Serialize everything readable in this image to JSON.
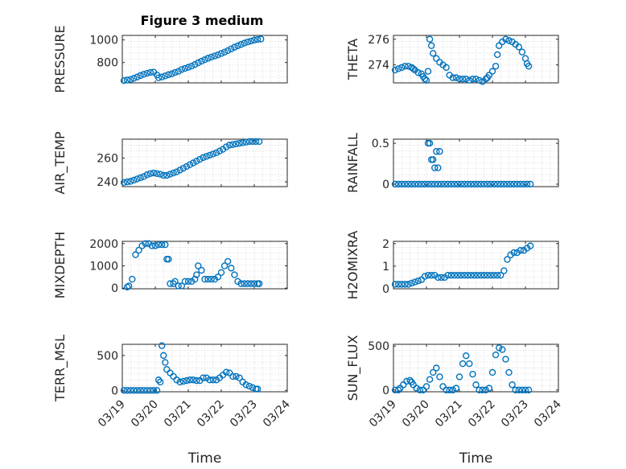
{
  "figure": {
    "title": "Figure 3 medium",
    "xlabel": "Time",
    "xticks": [
      "03/19",
      "03/20",
      "03/21",
      "03/22",
      "03/23",
      "03/24"
    ],
    "marker_color": "#0072BD",
    "axes_color": "#262626",
    "grid_color": "#DCDCDC"
  },
  "chart_data": [
    {
      "type": "scatter",
      "var": "pressure",
      "ylabel": "PRESSURE",
      "xlim": [
        0,
        5
      ],
      "ylim": [
        620,
        1040
      ],
      "yticks": [
        800,
        1000
      ],
      "grid": true,
      "x": [
        0.05,
        0.15,
        0.25,
        0.35,
        0.45,
        0.55,
        0.65,
        0.75,
        0.85,
        0.95,
        1.05,
        1.1,
        1.2,
        1.3,
        1.4,
        1.5,
        1.6,
        1.7,
        1.8,
        1.9,
        2.0,
        2.1,
        2.2,
        2.3,
        2.4,
        2.5,
        2.6,
        2.7,
        2.8,
        2.9,
        3.0,
        3.1,
        3.2,
        3.3,
        3.4,
        3.5,
        3.6,
        3.7,
        3.8,
        3.9,
        4.0,
        4.1,
        4.2
      ],
      "y": [
        640,
        645,
        650,
        660,
        672,
        685,
        695,
        705,
        712,
        715,
        690,
        665,
        672,
        682,
        692,
        700,
        712,
        722,
        738,
        748,
        758,
        768,
        782,
        798,
        812,
        825,
        838,
        848,
        858,
        868,
        880,
        892,
        905,
        920,
        935,
        948,
        960,
        972,
        982,
        990,
        998,
        1004,
        1008
      ]
    },
    {
      "type": "scatter",
      "var": "theta",
      "ylabel": "THETA",
      "xlim": [
        0,
        5
      ],
      "ylim": [
        272.6,
        276.3
      ],
      "yticks": [
        274,
        276
      ],
      "grid": true,
      "x": [
        0.05,
        0.15,
        0.25,
        0.35,
        0.45,
        0.55,
        0.6,
        0.65,
        0.75,
        0.85,
        0.9,
        0.95,
        1.0,
        1.05,
        1.1,
        1.15,
        1.2,
        1.3,
        1.4,
        1.5,
        1.6,
        1.7,
        1.8,
        1.9,
        2.0,
        2.1,
        2.2,
        2.3,
        2.4,
        2.5,
        2.6,
        2.7,
        2.8,
        2.85,
        2.9,
        3.0,
        3.1,
        3.15,
        3.2,
        3.3,
        3.4,
        3.5,
        3.6,
        3.7,
        3.8,
        3.9,
        4.0,
        4.05,
        4.1
      ],
      "y": [
        273.6,
        273.7,
        273.8,
        273.9,
        273.9,
        273.8,
        273.7,
        273.6,
        273.4,
        273.3,
        273.1,
        272.9,
        272.8,
        273.5,
        276.0,
        275.5,
        274.9,
        274.5,
        274.2,
        274.0,
        273.8,
        273.2,
        273.0,
        273.0,
        272.9,
        272.9,
        272.9,
        272.8,
        272.9,
        272.9,
        272.8,
        272.7,
        272.9,
        273.0,
        273.2,
        273.5,
        273.9,
        274.8,
        275.5,
        275.8,
        276.0,
        275.9,
        275.8,
        275.6,
        275.4,
        275.0,
        274.5,
        274.1,
        273.9
      ]
    },
    {
      "type": "scatter",
      "var": "air_temp",
      "ylabel": "AIR_TEMP",
      "xlim": [
        0,
        5
      ],
      "ylim": [
        236,
        276
      ],
      "yticks": [
        240,
        260
      ],
      "grid": true,
      "x": [
        0.05,
        0.15,
        0.25,
        0.35,
        0.45,
        0.55,
        0.65,
        0.75,
        0.85,
        0.95,
        1.05,
        1.15,
        1.25,
        1.35,
        1.45,
        1.55,
        1.65,
        1.75,
        1.85,
        1.95,
        2.05,
        2.15,
        2.25,
        2.35,
        2.45,
        2.55,
        2.65,
        2.75,
        2.85,
        2.95,
        3.05,
        3.15,
        3.25,
        3.35,
        3.45,
        3.55,
        3.65,
        3.75,
        3.85,
        3.95,
        4.05,
        4.15
      ],
      "y": [
        239.5,
        240,
        240.5,
        241.5,
        242.5,
        243.5,
        244.5,
        246,
        247,
        247.5,
        247,
        246.5,
        245.5,
        245.5,
        246.5,
        247.5,
        248.5,
        250,
        251.5,
        253,
        254.5,
        256,
        257.5,
        259,
        260.5,
        261.5,
        262.5,
        263.5,
        264.5,
        266,
        267.5,
        269.5,
        271,
        271.5,
        272,
        272.5,
        273,
        273.5,
        274,
        274,
        274,
        274
      ]
    },
    {
      "type": "scatter",
      "var": "rainfall",
      "ylabel": "RAINFALL",
      "xlim": [
        0,
        5
      ],
      "ylim": [
        -0.03,
        0.55
      ],
      "yticks": [
        0,
        0.5
      ],
      "grid": true,
      "x": [
        0.05,
        0.15,
        0.25,
        0.35,
        0.45,
        0.55,
        0.65,
        0.75,
        0.85,
        0.95,
        1.05,
        1.15,
        1.25,
        1.35,
        1.45,
        1.55,
        1.65,
        1.75,
        1.85,
        1.95,
        2.05,
        2.15,
        2.25,
        2.35,
        2.45,
        2.55,
        2.65,
        2.75,
        2.85,
        2.95,
        3.05,
        3.15,
        3.25,
        3.35,
        3.45,
        3.55,
        3.65,
        3.75,
        3.85,
        3.95,
        4.05,
        4.15,
        1.05,
        1.1,
        1.15,
        1.2,
        1.25,
        1.3,
        1.35,
        1.4
      ],
      "y": [
        0,
        0,
        0,
        0,
        0,
        0,
        0,
        0,
        0,
        0,
        0,
        0,
        0,
        0,
        0,
        0,
        0,
        0,
        0,
        0,
        0,
        0,
        0,
        0,
        0,
        0,
        0,
        0,
        0,
        0,
        0,
        0,
        0,
        0,
        0,
        0,
        0,
        0,
        0,
        0,
        0,
        0,
        0.5,
        0.5,
        0.3,
        0.3,
        0.2,
        0.4,
        0.2,
        0.4
      ]
    },
    {
      "type": "scatter",
      "var": "mixdepth",
      "ylabel": "MIXDEPTH",
      "xlim": [
        0,
        5
      ],
      "ylim": [
        -30,
        2100
      ],
      "yticks": [
        0,
        1000,
        2000
      ],
      "grid": true,
      "x": [
        0.15,
        0.2,
        0.3,
        0.4,
        0.5,
        0.6,
        0.7,
        0.8,
        0.9,
        1.0,
        1.1,
        1.2,
        1.3,
        1.35,
        1.4,
        1.45,
        1.55,
        1.6,
        1.7,
        1.8,
        1.9,
        2.0,
        2.1,
        2.2,
        2.25,
        2.3,
        2.4,
        2.5,
        2.6,
        2.7,
        2.8,
        2.9,
        3.0,
        3.1,
        3.2,
        3.3,
        3.4,
        3.5,
        3.6,
        3.7,
        3.8,
        3.9,
        4.0,
        4.1,
        4.15
      ],
      "y": [
        50,
        100,
        400,
        1500,
        1700,
        1900,
        2000,
        2000,
        1900,
        1900,
        1950,
        1950,
        1950,
        1300,
        1300,
        200,
        200,
        300,
        100,
        100,
        300,
        300,
        300,
        400,
        600,
        1000,
        800,
        400,
        400,
        400,
        400,
        500,
        700,
        1000,
        1200,
        900,
        600,
        300,
        200,
        200,
        200,
        200,
        200,
        200,
        200
      ]
    },
    {
      "type": "scatter",
      "var": "h2omixra",
      "ylabel": "H2OMIXRA",
      "xlim": [
        0,
        5
      ],
      "ylim": [
        0,
        2.1
      ],
      "yticks": [
        0,
        1,
        2
      ],
      "grid": true,
      "x": [
        0.05,
        0.15,
        0.25,
        0.35,
        0.45,
        0.55,
        0.65,
        0.75,
        0.85,
        0.95,
        1.05,
        1.15,
        1.25,
        1.35,
        1.45,
        1.55,
        1.65,
        1.75,
        1.85,
        1.95,
        2.05,
        2.15,
        2.25,
        2.35,
        2.45,
        2.55,
        2.65,
        2.75,
        2.85,
        2.95,
        3.05,
        3.15,
        3.25,
        3.35,
        3.45,
        3.55,
        3.65,
        3.75,
        3.85,
        3.95,
        4.05,
        4.15
      ],
      "y": [
        0.2,
        0.2,
        0.2,
        0.2,
        0.2,
        0.25,
        0.3,
        0.35,
        0.4,
        0.55,
        0.6,
        0.6,
        0.6,
        0.5,
        0.5,
        0.5,
        0.6,
        0.6,
        0.6,
        0.6,
        0.6,
        0.6,
        0.6,
        0.6,
        0.6,
        0.6,
        0.6,
        0.6,
        0.6,
        0.6,
        0.6,
        0.6,
        0.6,
        0.8,
        1.3,
        1.5,
        1.6,
        1.6,
        1.7,
        1.7,
        1.8,
        1.9
      ]
    },
    {
      "type": "scatter",
      "var": "terr_msl",
      "ylabel": "TERR_MSL",
      "xlim": [
        0,
        5
      ],
      "ylim": [
        -20,
        660
      ],
      "yticks": [
        0,
        500
      ],
      "grid": true,
      "x": [
        0.05,
        0.15,
        0.25,
        0.35,
        0.45,
        0.55,
        0.65,
        0.75,
        0.85,
        0.95,
        1.05,
        1.1,
        1.15,
        1.2,
        1.25,
        1.3,
        1.35,
        1.45,
        1.55,
        1.65,
        1.75,
        1.85,
        1.95,
        2.05,
        2.15,
        2.25,
        2.35,
        2.45,
        2.55,
        2.65,
        2.75,
        2.85,
        2.95,
        3.05,
        3.15,
        3.25,
        3.35,
        3.45,
        3.55,
        3.65,
        3.75,
        3.85,
        3.95,
        4.05,
        4.1
      ],
      "y": [
        0,
        0,
        0,
        0,
        0,
        0,
        0,
        0,
        0,
        0,
        0,
        150,
        120,
        640,
        500,
        400,
        300,
        250,
        200,
        150,
        120,
        130,
        140,
        150,
        150,
        140,
        140,
        180,
        180,
        150,
        150,
        150,
        180,
        220,
        260,
        250,
        200,
        200,
        180,
        120,
        80,
        60,
        40,
        20,
        20
      ]
    },
    {
      "type": "scatter",
      "var": "sun_flux",
      "ylabel": "SUN_FLUX",
      "xlim": [
        0,
        5
      ],
      "ylim": [
        -20,
        520
      ],
      "yticks": [
        0,
        500
      ],
      "grid": true,
      "x": [
        0.05,
        0.15,
        0.2,
        0.3,
        0.4,
        0.5,
        0.55,
        0.6,
        0.7,
        0.8,
        0.9,
        1.0,
        1.1,
        1.2,
        1.3,
        1.4,
        1.5,
        1.6,
        1.7,
        1.8,
        1.9,
        2.0,
        2.1,
        2.2,
        2.3,
        2.4,
        2.5,
        2.6,
        2.7,
        2.8,
        2.9,
        3.0,
        3.1,
        3.2,
        3.3,
        3.4,
        3.5,
        3.6,
        3.7,
        3.8,
        3.9,
        4.0,
        4.1
      ],
      "y": [
        0,
        0,
        20,
        60,
        100,
        110,
        90,
        60,
        20,
        0,
        0,
        40,
        120,
        200,
        250,
        150,
        40,
        0,
        0,
        0,
        20,
        150,
        300,
        390,
        300,
        180,
        60,
        0,
        0,
        0,
        20,
        200,
        400,
        480,
        460,
        350,
        200,
        60,
        0,
        0,
        0,
        0,
        0
      ]
    }
  ]
}
